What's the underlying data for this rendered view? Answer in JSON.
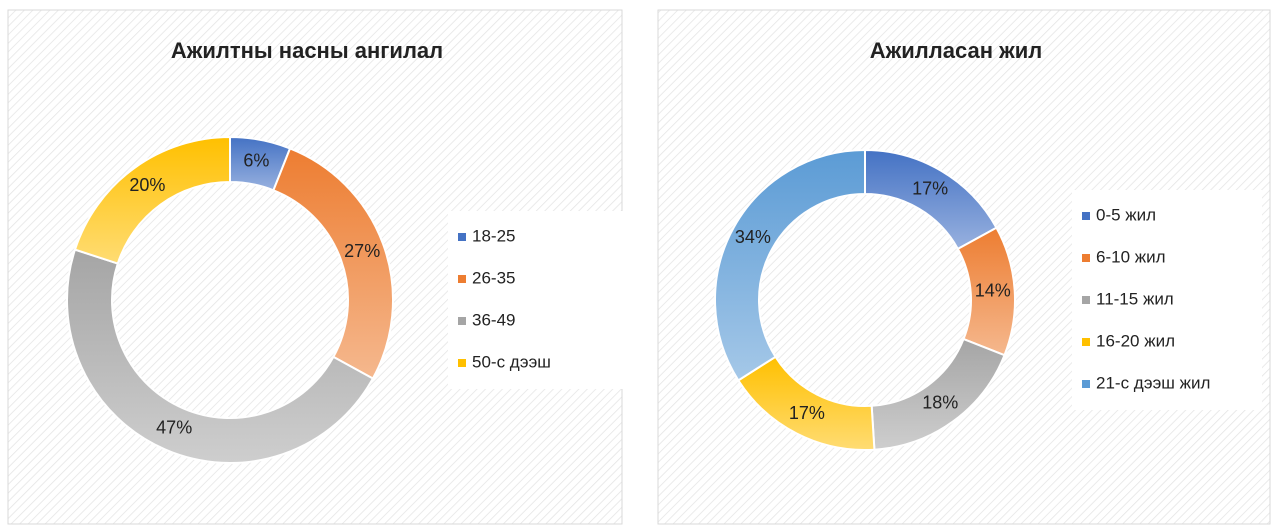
{
  "chart_data": [
    {
      "type": "donut",
      "title": "Ажилтны насны ангилал",
      "categories": [
        "18-25",
        "26-35",
        "36-49",
        "50-с дээш"
      ],
      "values": [
        6,
        27,
        47,
        20
      ],
      "value_labels": [
        "6%",
        "27%",
        "47%",
        "20%"
      ],
      "colors": [
        "#4472c4",
        "#ed7d31",
        "#a5a5a5",
        "#ffc000"
      ],
      "legend": "right"
    },
    {
      "type": "donut",
      "title": "Ажилласан жил",
      "categories": [
        "0-5 жил",
        "6-10 жил",
        "11-15 жил",
        "16-20 жил",
        "21-с дээш жил"
      ],
      "values": [
        17,
        14,
        18,
        17,
        34
      ],
      "value_labels": [
        "17%",
        "14%",
        "18%",
        "17%",
        "34%"
      ],
      "colors": [
        "#4472c4",
        "#ed7d31",
        "#a5a5a5",
        "#ffc000",
        "#5b9bd5"
      ],
      "legend": "right"
    }
  ]
}
